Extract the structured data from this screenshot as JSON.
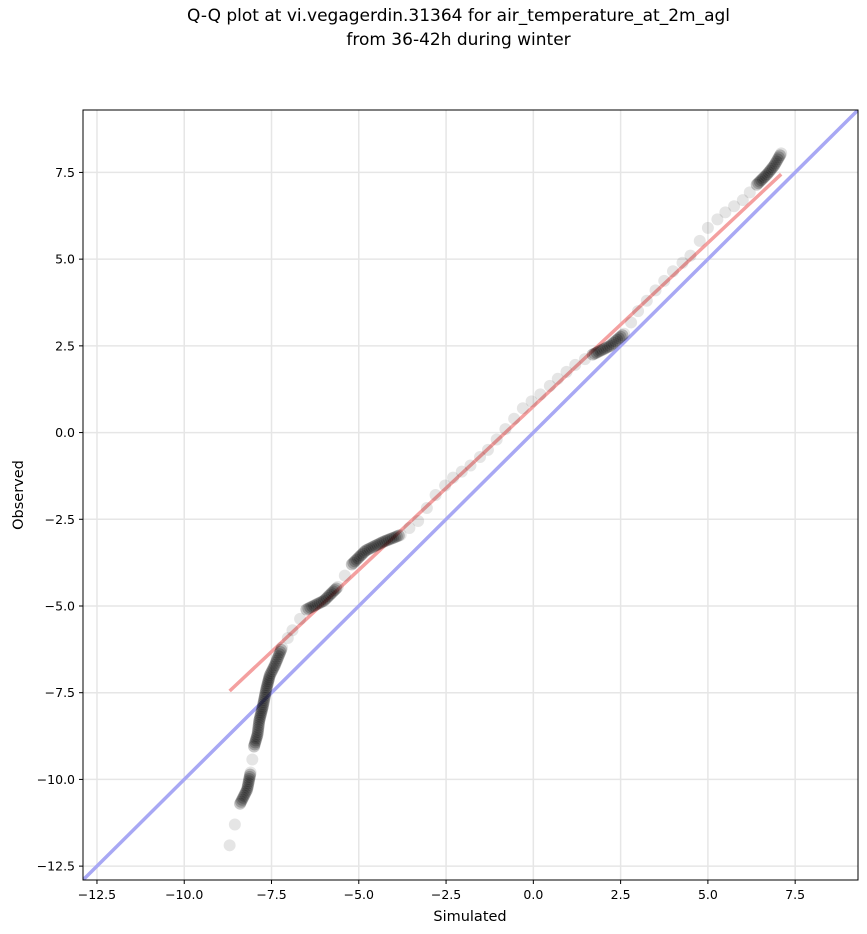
{
  "chart_data": {
    "type": "scatter",
    "title": "Q-Q plot at vi.vegagerdin.31364 for air_temperature_at_2m_agl",
    "subtitle": "from 36-42h during winter",
    "xlabel": "Simulated",
    "ylabel": "Observed",
    "xlim": [
      -12.9,
      9.3
    ],
    "ylim": [
      -12.9,
      9.3
    ],
    "xticks": [
      -12.5,
      -10.0,
      -7.5,
      -5.0,
      -2.5,
      0.0,
      2.5,
      5.0,
      7.5
    ],
    "yticks": [
      -12.5,
      -10.0,
      -7.5,
      -5.0,
      -2.5,
      0.0,
      2.5,
      5.0,
      7.5
    ],
    "xtick_labels": [
      "−12.5",
      "−10.0",
      "−7.5",
      "−5.0",
      "−2.5",
      "0.0",
      "2.5",
      "5.0",
      "7.5"
    ],
    "ytick_labels": [
      "−12.5",
      "−10.0",
      "−7.5",
      "−5.0",
      "−2.5",
      "0.0",
      "2.5",
      "5.0",
      "7.5"
    ],
    "grid": true,
    "quantile_curve": [
      [
        -8.7,
        -11.9
      ],
      [
        -8.4,
        -10.7
      ],
      [
        -8.2,
        -10.3
      ],
      [
        -8.1,
        -9.8
      ],
      [
        -8.0,
        -9.05
      ],
      [
        -7.9,
        -8.7
      ],
      [
        -7.85,
        -8.3
      ],
      [
        -7.75,
        -7.9
      ],
      [
        -7.65,
        -7.4
      ],
      [
        -7.55,
        -7.0
      ],
      [
        -7.4,
        -6.7
      ],
      [
        -7.2,
        -6.2
      ],
      [
        -6.9,
        -5.7
      ],
      [
        -6.5,
        -5.1
      ],
      [
        -6.0,
        -4.85
      ],
      [
        -5.6,
        -4.45
      ],
      [
        -5.2,
        -3.8
      ],
      [
        -4.8,
        -3.4
      ],
      [
        -4.3,
        -3.15
      ],
      [
        -3.8,
        -2.95
      ],
      [
        -3.3,
        -2.55
      ],
      [
        -2.8,
        -1.8
      ],
      [
        -2.3,
        -1.3
      ],
      [
        -1.8,
        -0.95
      ],
      [
        -1.3,
        -0.5
      ],
      [
        -0.8,
        0.1
      ],
      [
        -0.3,
        0.7
      ],
      [
        0.2,
        1.1
      ],
      [
        0.7,
        1.55
      ],
      [
        1.2,
        1.95
      ],
      [
        1.7,
        2.25
      ],
      [
        2.2,
        2.5
      ],
      [
        2.6,
        2.85
      ],
      [
        3.0,
        3.5
      ],
      [
        3.5,
        4.1
      ],
      [
        4.0,
        4.65
      ],
      [
        4.5,
        5.1
      ],
      [
        5.0,
        5.9
      ],
      [
        5.5,
        6.35
      ],
      [
        6.0,
        6.7
      ],
      [
        6.4,
        7.15
      ],
      [
        6.7,
        7.45
      ],
      [
        6.9,
        7.7
      ],
      [
        7.1,
        8.05
      ]
    ],
    "fit_line": {
      "x": [
        -8.7,
        7.1
      ],
      "y": [
        -7.45,
        7.45
      ],
      "color": "#f4a0a0"
    },
    "reference_line": {
      "x": [
        -12.9,
        9.3
      ],
      "y": [
        -12.9,
        9.3
      ],
      "color": "#a8a8f4"
    },
    "colors": {
      "points": "#000000",
      "grid": "#e6e6e6"
    }
  }
}
